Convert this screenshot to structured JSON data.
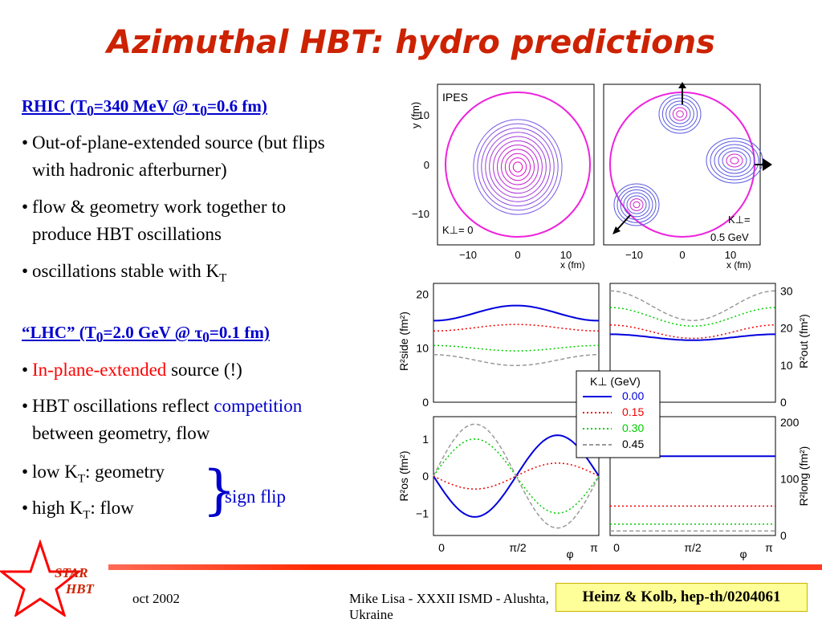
{
  "title": "Azimuthal HBT: hydro predictions",
  "rhic": {
    "heading_a": "RHIC (T",
    "heading_sub1": "0",
    "heading_b": "=340 MeV @ ",
    "heading_tau": "τ",
    "heading_sub2": "0",
    "heading_c": "=0.6 fm)",
    "b1_l1": "Out-of-plane-extended source (but flips",
    "b1_l2": "with hadronic afterburner)",
    "b2_l1": "flow & geometry work together to",
    "b2_l2": "produce HBT oscillations",
    "b3": "oscillations stable with K",
    "b3_sub": "T"
  },
  "lhc": {
    "heading_a": "“LHC” (T",
    "heading_sub1": "0",
    "heading_b": "=2.0 GeV @ ",
    "heading_tau": "τ",
    "heading_sub2": "0",
    "heading_c": "=0.1 fm)",
    "b1_red": "In-plane-extended",
    "b1_rest": " source  (!)",
    "b2_a": "HBT oscillations reflect ",
    "b2_blue": "competition",
    "b2_l2": "between geometry, flow",
    "b3_a": "low K",
    "b3_sub": "T",
    "b3_b": ": geometry",
    "b4_a": "high K",
    "b4_sub": "T",
    "b4_b": ": flow",
    "sign_flip": "sign flip"
  },
  "bullet": "•",
  "footer": {
    "logo_l1": "STAR",
    "logo_l2": "HBT",
    "date": "oct 2002",
    "mid": "Mike Lisa - XXXII ISMD - Alushta, Ukraine",
    "citation": "Heinz & Kolb, hep-th/0204061"
  },
  "colors": {
    "title": "#cc2200",
    "link": "#0000cc",
    "accent": "#ff0000",
    "citation_bg": "#ffff99"
  },
  "chart_data": [
    {
      "type": "contour",
      "panel": "left",
      "label": "IPES",
      "kperp": "K⊥= 0",
      "xlabel": "x (fm)",
      "ylabel": "y (fm)",
      "xticks": [
        "−10",
        "0",
        "10"
      ],
      "yticks": [
        "10",
        "0",
        "−10"
      ]
    },
    {
      "type": "contour",
      "panel": "right",
      "kperp_l1": "K⊥=",
      "kperp_l2": "0.5 GeV",
      "xlabel": "x (fm)",
      "xticks": [
        "−10",
        "0",
        "10"
      ]
    },
    {
      "type": "line",
      "ylabel": "R²side (fm²)",
      "x_range": [
        0,
        3.1416
      ],
      "ylim": [
        0,
        22
      ],
      "yticks": [
        "20",
        "10",
        "0"
      ],
      "series": [
        {
          "kperp": "0.00",
          "mean": 16.5,
          "amp": -1.4,
          "color": "#0000dd",
          "dash": "none"
        },
        {
          "kperp": "0.15",
          "mean": 13.8,
          "amp": -0.6,
          "color": "#ee0000",
          "dash": "2,3"
        },
        {
          "kperp": "0.30",
          "mean": 10.0,
          "amp": 0.5,
          "color": "#00cc00",
          "dash": "2,3"
        },
        {
          "kperp": "0.45",
          "mean": 7.8,
          "amp": 1.0,
          "color": "#999999",
          "dash": "5,3"
        }
      ]
    },
    {
      "type": "line",
      "ylabel": "R²out (fm²)",
      "x_range": [
        0,
        3.1416
      ],
      "ylim": [
        0,
        32
      ],
      "yticks": [
        "30",
        "20",
        "10",
        "0"
      ],
      "series": [
        {
          "kperp": "0.00",
          "mean": 17.5,
          "amp": 0.8,
          "color": "#0000dd",
          "dash": "none"
        },
        {
          "kperp": "0.15",
          "mean": 19.0,
          "amp": 1.8,
          "color": "#ee0000",
          "dash": "2,3"
        },
        {
          "kperp": "0.30",
          "mean": 23.0,
          "amp": 2.5,
          "color": "#00cc00",
          "dash": "2,3"
        },
        {
          "kperp": "0.45",
          "mean": 26.0,
          "amp": 4.0,
          "color": "#999999",
          "dash": "5,3"
        }
      ]
    },
    {
      "type": "line",
      "ylabel": "R²os (fm²)",
      "x_range": [
        0,
        3.1416
      ],
      "ylim": [
        -1.6,
        1.6
      ],
      "yticks": [
        "1",
        "0",
        "−1"
      ],
      "series": [
        {
          "kperp": "0.00",
          "amp": -1.1,
          "color": "#0000dd",
          "dash": "none"
        },
        {
          "kperp": "0.15",
          "amp": -0.35,
          "color": "#ee0000",
          "dash": "2,3"
        },
        {
          "kperp": "0.30",
          "amp": 1.0,
          "color": "#00cc00",
          "dash": "2,3"
        },
        {
          "kperp": "0.45",
          "amp": 1.4,
          "color": "#999999",
          "dash": "5,3"
        }
      ]
    },
    {
      "type": "line",
      "ylabel": "R²long (fm²)",
      "x_range": [
        0,
        3.1416
      ],
      "ylim": [
        0,
        210
      ],
      "yticks": [
        "200",
        "100",
        "0"
      ],
      "xticks": [
        "0",
        "π/2",
        "π"
      ],
      "xlabel": "φ",
      "series": [
        {
          "kperp": "0.00",
          "mean": 140,
          "amp": 0,
          "color": "#0000dd",
          "dash": "none"
        },
        {
          "kperp": "0.15",
          "mean": 52,
          "amp": 0,
          "color": "#ee0000",
          "dash": "2,3"
        },
        {
          "kperp": "0.30",
          "mean": 20,
          "amp": 0,
          "color": "#00cc00",
          "dash": "2,3"
        },
        {
          "kperp": "0.45",
          "mean": 8,
          "amp": 0,
          "color": "#999999",
          "dash": "5,3"
        }
      ]
    }
  ],
  "legend": {
    "title": "K⊥ (GeV)",
    "items": [
      {
        "label": "0.00",
        "color": "#0000dd",
        "dash": "none"
      },
      {
        "label": "0.15",
        "color": "#ee0000",
        "dash": "2,3"
      },
      {
        "label": "0.30",
        "color": "#00cc00",
        "dash": "2,3"
      },
      {
        "label": "0.45",
        "color": "#999999",
        "dash": "5,3"
      }
    ]
  },
  "left_xticks": [
    "0",
    "π/2",
    "π"
  ],
  "xaxis_symbol": "φ"
}
